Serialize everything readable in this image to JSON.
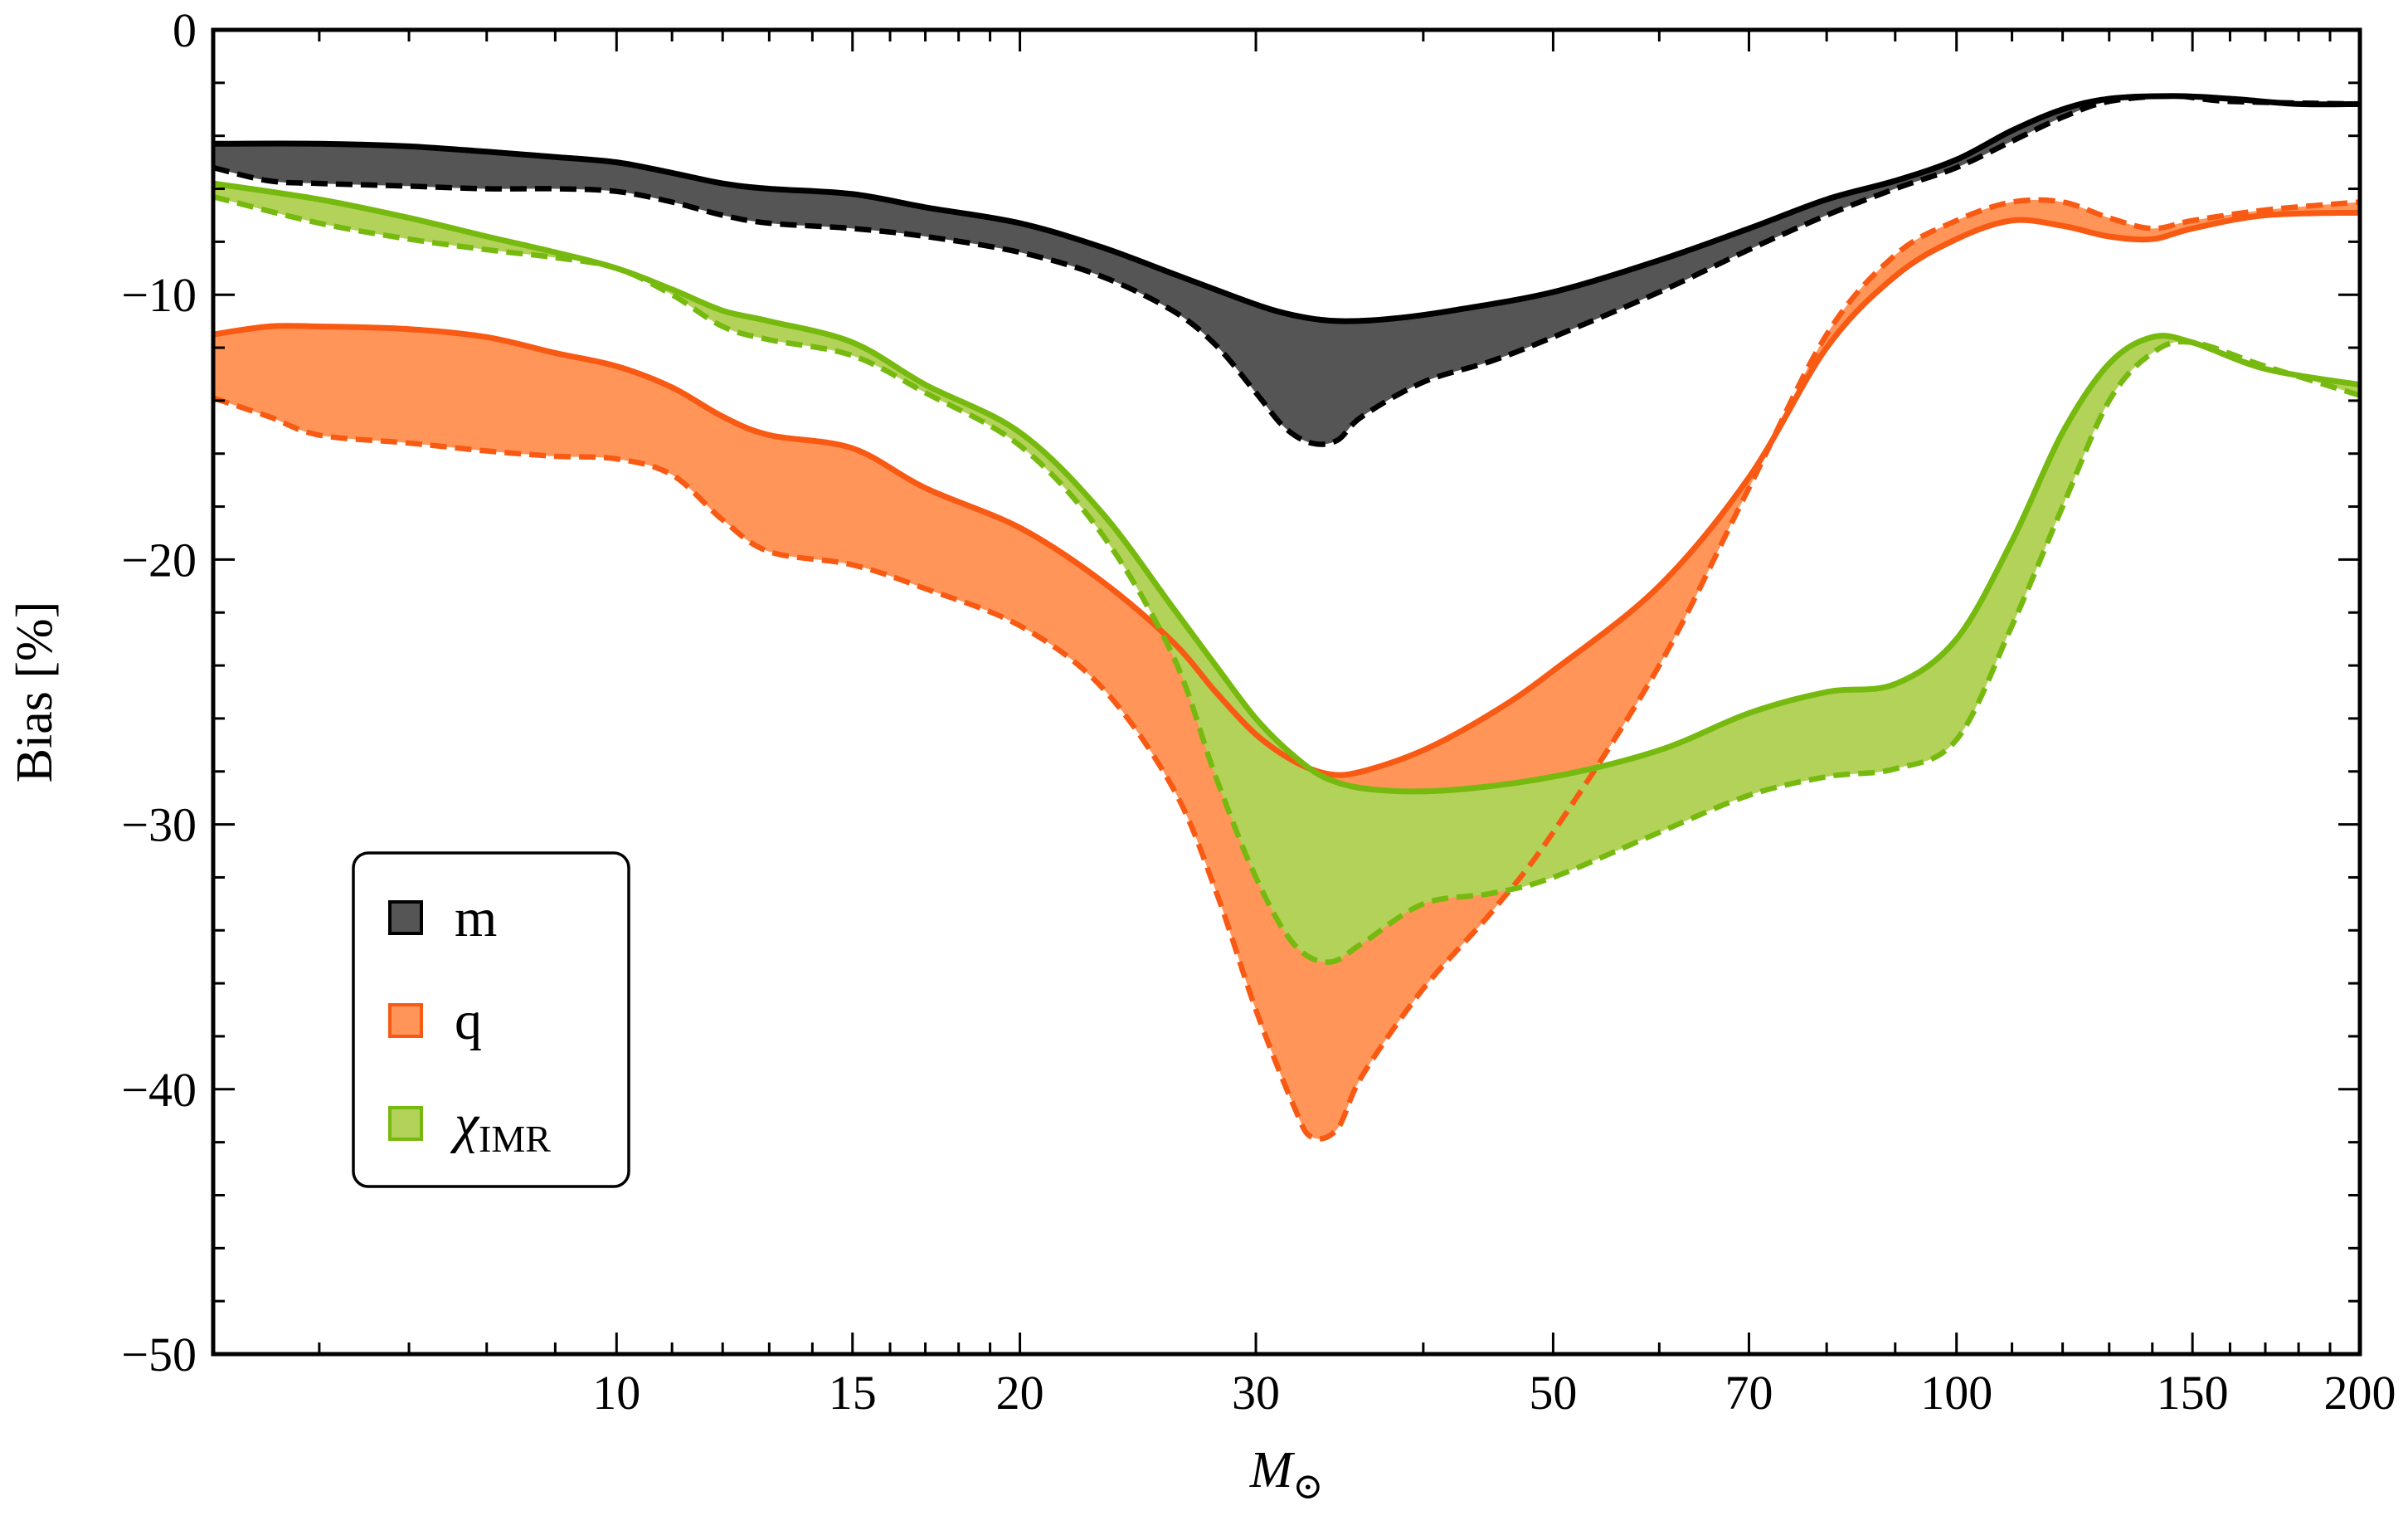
{
  "chart_data": {
    "type": "area",
    "title": "",
    "xlabel": "M",
    "xlabel_subscript": "⊙",
    "ylabel": "Bias [%]",
    "xscale": "log",
    "xlim": [
      5,
      200
    ],
    "ylim": [
      -50,
      0
    ],
    "xticks": [
      10,
      15,
      20,
      30,
      50,
      70,
      100,
      150,
      200
    ],
    "xtick_labels": [
      "10",
      "15",
      "20",
      "30",
      "50",
      "70",
      "100",
      "150",
      "200"
    ],
    "yticks": [
      0,
      -10,
      -20,
      -30,
      -40,
      -50
    ],
    "ytick_labels": [
      "0",
      "−10",
      "−20",
      "−30",
      "−40",
      "−50"
    ],
    "grid": false,
    "legend_position": "bottom-left",
    "series": [
      {
        "name": "m",
        "label_sub": "",
        "fill": "#555555",
        "line": "#000000",
        "solid": [
          [
            5,
            -4.3
          ],
          [
            6,
            -4.3
          ],
          [
            7,
            -4.4
          ],
          [
            8,
            -4.6
          ],
          [
            9,
            -4.8
          ],
          [
            10,
            -5.0
          ],
          [
            11,
            -5.4
          ],
          [
            12,
            -5.8
          ],
          [
            13,
            -6.0
          ],
          [
            15,
            -6.2
          ],
          [
            17,
            -6.7
          ],
          [
            20,
            -7.3
          ],
          [
            23,
            -8.2
          ],
          [
            26,
            -9.2
          ],
          [
            29,
            -10.1
          ],
          [
            31,
            -10.6
          ],
          [
            33,
            -10.9
          ],
          [
            35,
            -11.0
          ],
          [
            38,
            -10.9
          ],
          [
            42,
            -10.6
          ],
          [
            50,
            -9.9
          ],
          [
            60,
            -8.7
          ],
          [
            70,
            -7.5
          ],
          [
            80,
            -6.4
          ],
          [
            90,
            -5.7
          ],
          [
            100,
            -4.9
          ],
          [
            110,
            -3.8
          ],
          [
            120,
            -3.0
          ],
          [
            130,
            -2.6
          ],
          [
            145,
            -2.5
          ],
          [
            160,
            -2.6
          ],
          [
            180,
            -2.8
          ],
          [
            200,
            -2.8
          ]
        ],
        "dashed": [
          [
            5,
            -5.2
          ],
          [
            5.5,
            -5.7
          ],
          [
            6,
            -5.8
          ],
          [
            7,
            -5.9
          ],
          [
            8,
            -6.0
          ],
          [
            9,
            -6.0
          ],
          [
            10,
            -6.1
          ],
          [
            11,
            -6.5
          ],
          [
            12,
            -7.0
          ],
          [
            13,
            -7.3
          ],
          [
            15,
            -7.5
          ],
          [
            17,
            -7.8
          ],
          [
            20,
            -8.4
          ],
          [
            23,
            -9.3
          ],
          [
            26,
            -10.6
          ],
          [
            28,
            -11.9
          ],
          [
            30,
            -13.7
          ],
          [
            31.5,
            -15.0
          ],
          [
            33,
            -15.6
          ],
          [
            34.5,
            -15.5
          ],
          [
            36,
            -14.6
          ],
          [
            40,
            -13.3
          ],
          [
            45,
            -12.5
          ],
          [
            50,
            -11.6
          ],
          [
            60,
            -9.9
          ],
          [
            70,
            -8.3
          ],
          [
            80,
            -7.0
          ],
          [
            90,
            -6.0
          ],
          [
            100,
            -5.2
          ],
          [
            110,
            -4.2
          ],
          [
            120,
            -3.3
          ],
          [
            130,
            -2.7
          ],
          [
            145,
            -2.5
          ],
          [
            160,
            -2.7
          ],
          [
            200,
            -2.8
          ]
        ]
      },
      {
        "name": "q",
        "label_sub": "",
        "fill": "#ff9558",
        "line": "#f85a14",
        "solid": [
          [
            5,
            -11.5
          ],
          [
            5.5,
            -11.2
          ],
          [
            6,
            -11.2
          ],
          [
            7,
            -11.3
          ],
          [
            8,
            -11.6
          ],
          [
            9,
            -12.2
          ],
          [
            10,
            -12.7
          ],
          [
            11,
            -13.5
          ],
          [
            12,
            -14.6
          ],
          [
            13,
            -15.3
          ],
          [
            15,
            -15.8
          ],
          [
            17,
            -17.3
          ],
          [
            20,
            -18.8
          ],
          [
            23,
            -20.8
          ],
          [
            26,
            -23.1
          ],
          [
            28,
            -25.0
          ],
          [
            30,
            -26.6
          ],
          [
            32,
            -27.6
          ],
          [
            34,
            -28.1
          ],
          [
            36,
            -28.0
          ],
          [
            40,
            -27.2
          ],
          [
            45,
            -25.8
          ],
          [
            50,
            -24.2
          ],
          [
            60,
            -21.0
          ],
          [
            70,
            -16.9
          ],
          [
            80,
            -12.0
          ],
          [
            90,
            -9.3
          ],
          [
            100,
            -7.9
          ],
          [
            110,
            -7.2
          ],
          [
            120,
            -7.4
          ],
          [
            130,
            -7.8
          ],
          [
            140,
            -7.9
          ],
          [
            150,
            -7.5
          ],
          [
            170,
            -7.0
          ],
          [
            200,
            -6.9
          ]
        ],
        "dashed": [
          [
            5,
            -13.9
          ],
          [
            5.5,
            -14.6
          ],
          [
            6,
            -15.3
          ],
          [
            7,
            -15.6
          ],
          [
            8,
            -15.9
          ],
          [
            9,
            -16.1
          ],
          [
            10,
            -16.2
          ],
          [
            11,
            -16.8
          ],
          [
            12,
            -18.5
          ],
          [
            13,
            -19.7
          ],
          [
            15,
            -20.2
          ],
          [
            17,
            -21.1
          ],
          [
            20,
            -22.5
          ],
          [
            23,
            -24.8
          ],
          [
            26,
            -28.6
          ],
          [
            28,
            -32.5
          ],
          [
            30,
            -37.0
          ],
          [
            32,
            -40.6
          ],
          [
            33,
            -41.8
          ],
          [
            34.5,
            -41.5
          ],
          [
            36,
            -39.5
          ],
          [
            40,
            -36.2
          ],
          [
            45,
            -33.3
          ],
          [
            50,
            -30.3
          ],
          [
            60,
            -24.0
          ],
          [
            70,
            -17.3
          ],
          [
            80,
            -11.5
          ],
          [
            90,
            -8.5
          ],
          [
            100,
            -7.2
          ],
          [
            110,
            -6.5
          ],
          [
            120,
            -6.5
          ],
          [
            130,
            -7.1
          ],
          [
            140,
            -7.5
          ],
          [
            150,
            -7.2
          ],
          [
            170,
            -6.8
          ],
          [
            200,
            -6.5
          ]
        ]
      },
      {
        "name": "χ",
        "label_sub": "IMR",
        "fill": "#b3d25a",
        "line": "#76b90f",
        "solid": [
          [
            5,
            -5.8
          ],
          [
            6,
            -6.4
          ],
          [
            7,
            -7.1
          ],
          [
            8,
            -7.8
          ],
          [
            9,
            -8.4
          ],
          [
            10,
            -9.0
          ],
          [
            11,
            -9.8
          ],
          [
            12,
            -10.6
          ],
          [
            13,
            -11.0
          ],
          [
            15,
            -11.8
          ],
          [
            17,
            -13.4
          ],
          [
            20,
            -15.2
          ],
          [
            23,
            -18.2
          ],
          [
            26,
            -21.8
          ],
          [
            28,
            -24.0
          ],
          [
            30,
            -26.0
          ],
          [
            32,
            -27.4
          ],
          [
            34,
            -28.3
          ],
          [
            37,
            -28.7
          ],
          [
            42,
            -28.7
          ],
          [
            50,
            -28.2
          ],
          [
            60,
            -27.2
          ],
          [
            70,
            -25.8
          ],
          [
            80,
            -25.0
          ],
          [
            90,
            -24.7
          ],
          [
            100,
            -23.0
          ],
          [
            110,
            -19.3
          ],
          [
            120,
            -15.2
          ],
          [
            130,
            -12.6
          ],
          [
            140,
            -11.6
          ],
          [
            150,
            -11.8
          ],
          [
            170,
            -12.8
          ],
          [
            200,
            -13.4
          ]
        ],
        "dashed": [
          [
            5,
            -6.3
          ],
          [
            6,
            -7.3
          ],
          [
            7,
            -7.9
          ],
          [
            8,
            -8.3
          ],
          [
            9,
            -8.6
          ],
          [
            10,
            -9.0
          ],
          [
            11,
            -10.0
          ],
          [
            12,
            -11.2
          ],
          [
            13,
            -11.7
          ],
          [
            15,
            -12.3
          ],
          [
            17,
            -13.7
          ],
          [
            20,
            -15.7
          ],
          [
            23,
            -19.0
          ],
          [
            26,
            -23.6
          ],
          [
            28,
            -28.2
          ],
          [
            30,
            -32.0
          ],
          [
            32,
            -34.5
          ],
          [
            34,
            -35.2
          ],
          [
            36,
            -34.5
          ],
          [
            40,
            -33.0
          ],
          [
            45,
            -32.6
          ],
          [
            50,
            -32.0
          ],
          [
            60,
            -30.3
          ],
          [
            70,
            -28.9
          ],
          [
            80,
            -28.2
          ],
          [
            90,
            -27.9
          ],
          [
            100,
            -26.8
          ],
          [
            110,
            -22.5
          ],
          [
            120,
            -18.0
          ],
          [
            130,
            -14.0
          ],
          [
            140,
            -12.2
          ],
          [
            150,
            -11.8
          ],
          [
            170,
            -12.7
          ],
          [
            200,
            -13.8
          ]
        ]
      }
    ]
  }
}
